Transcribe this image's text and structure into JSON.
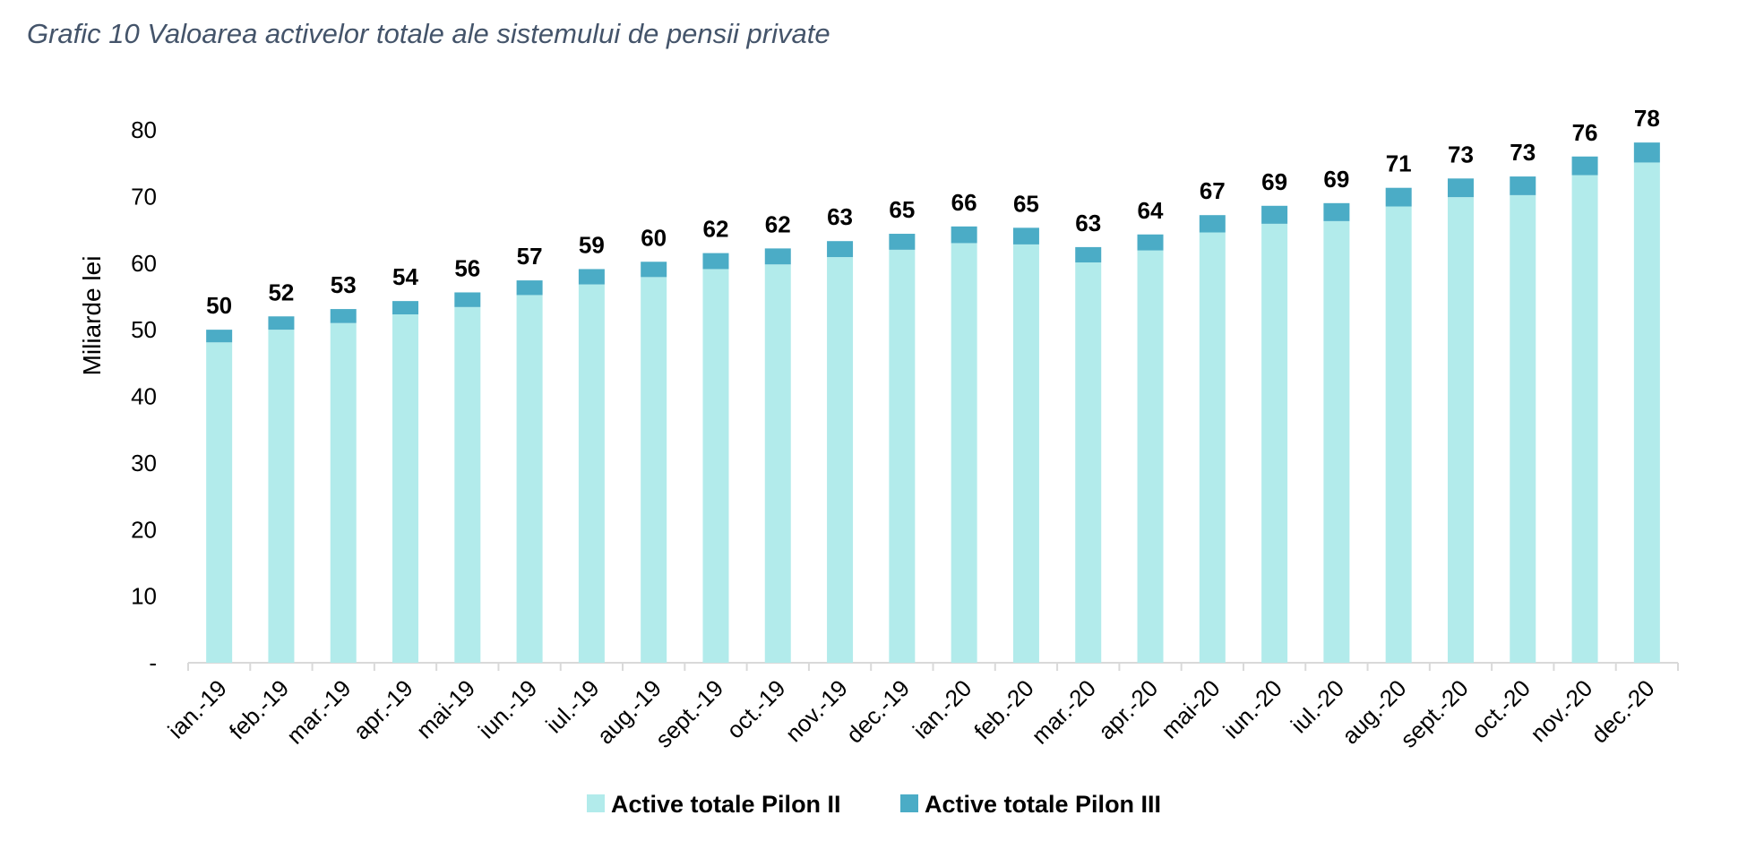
{
  "title": "Grafic 10 Valoarea activelor totale ale sistemului de pensii private",
  "chart_data": {
    "type": "bar",
    "stacked": true,
    "ylabel": "Miliarde lei",
    "ylim": [
      0,
      80
    ],
    "yticks": [
      {
        "value": 0,
        "label": "-"
      },
      {
        "value": 10,
        "label": "10"
      },
      {
        "value": 20,
        "label": "20"
      },
      {
        "value": 30,
        "label": "30"
      },
      {
        "value": 40,
        "label": "40"
      },
      {
        "value": 50,
        "label": "50"
      },
      {
        "value": 60,
        "label": "60"
      },
      {
        "value": 70,
        "label": "70"
      },
      {
        "value": 80,
        "label": "80"
      }
    ],
    "grid": false,
    "legend_position": "bottom",
    "categories": [
      "ian.-19",
      "feb.-19",
      "mar.-19",
      "apr.-19",
      "mai-19",
      "iun.-19",
      "iul.-19",
      "aug.-19",
      "sept.-19",
      "oct.-19",
      "nov.-19",
      "dec.-19",
      "ian.-20",
      "feb.-20",
      "mar.-20",
      "apr.-20",
      "mai-20",
      "iun.-20",
      "iul.-20",
      "aug.-20",
      "sept.-20",
      "oct.-20",
      "nov.-20",
      "dec.-20"
    ],
    "series": [
      {
        "name": "Active totale Pilon II",
        "color": "#b2ebeb",
        "values": [
          48.1,
          50.0,
          51.0,
          52.3,
          53.4,
          55.2,
          56.8,
          57.9,
          59.1,
          59.8,
          60.9,
          62.0,
          63.0,
          62.8,
          60.1,
          61.9,
          64.6,
          65.9,
          66.3,
          68.5,
          69.9,
          70.2,
          73.2,
          75.1
        ]
      },
      {
        "name": "Active totale Pilon III",
        "color": "#4bacc6",
        "values": [
          1.9,
          2.0,
          2.1,
          2.0,
          2.2,
          2.2,
          2.3,
          2.3,
          2.4,
          2.4,
          2.4,
          2.4,
          2.5,
          2.5,
          2.3,
          2.4,
          2.6,
          2.7,
          2.7,
          2.8,
          2.8,
          2.8,
          2.8,
          3.0
        ]
      }
    ],
    "totals": [
      "50",
      "52",
      "53",
      "54",
      "56",
      "57",
      "59",
      "60",
      "62",
      "62",
      "63",
      "65",
      "66",
      "65",
      "63",
      "64",
      "67",
      "69",
      "69",
      "71",
      "73",
      "73",
      "76",
      "78"
    ]
  }
}
